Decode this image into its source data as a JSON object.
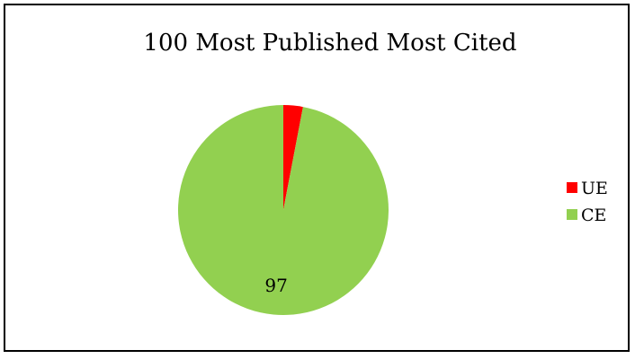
{
  "chart_data": {
    "type": "pie",
    "title": "100 Most Published Most Cited",
    "categories": [
      "UE",
      "CE"
    ],
    "values": [
      3,
      97
    ],
    "colors": [
      "#ff0000",
      "#92d050"
    ],
    "data_labels": [
      "",
      "97"
    ],
    "legend_position": "right"
  }
}
